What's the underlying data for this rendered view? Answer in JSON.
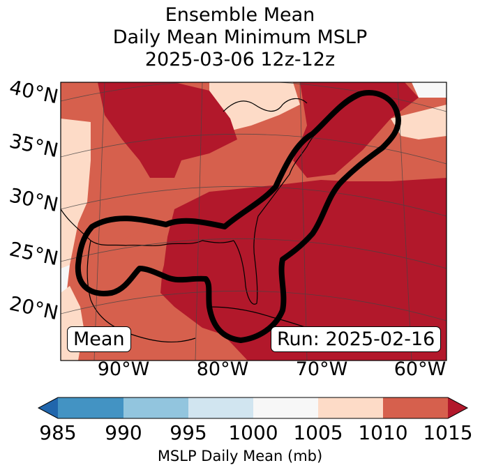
{
  "title": {
    "line1": "Ensemble Mean",
    "line2": "Daily Mean Minimum MSLP",
    "line3": "2025-03-06 12z-12z"
  },
  "map": {
    "lat_labels": [
      "40°N",
      "35°N",
      "30°N",
      "25°N",
      "20°N"
    ],
    "lon_labels": [
      "90°W",
      "80°W",
      "70°W",
      "60°W"
    ],
    "left_box": "Mean",
    "right_box": "Run: 2025-02-16",
    "colors": {
      "c985": "#4393c3",
      "c990": "#92c5de",
      "c995": "#d1e5f0",
      "c1000": "#f7f7f7",
      "c1005": "#fddbc7",
      "c1010": "#d6604d",
      "c1015": "#b2182b",
      "below": "#2166ac",
      "land_line": "#000000",
      "contour": "#000000"
    }
  },
  "colorbar": {
    "ticks": [
      "985",
      "990",
      "995",
      "1000",
      "1005",
      "1010",
      "1015"
    ],
    "label": "MSLP Daily Mean (mb)"
  }
}
